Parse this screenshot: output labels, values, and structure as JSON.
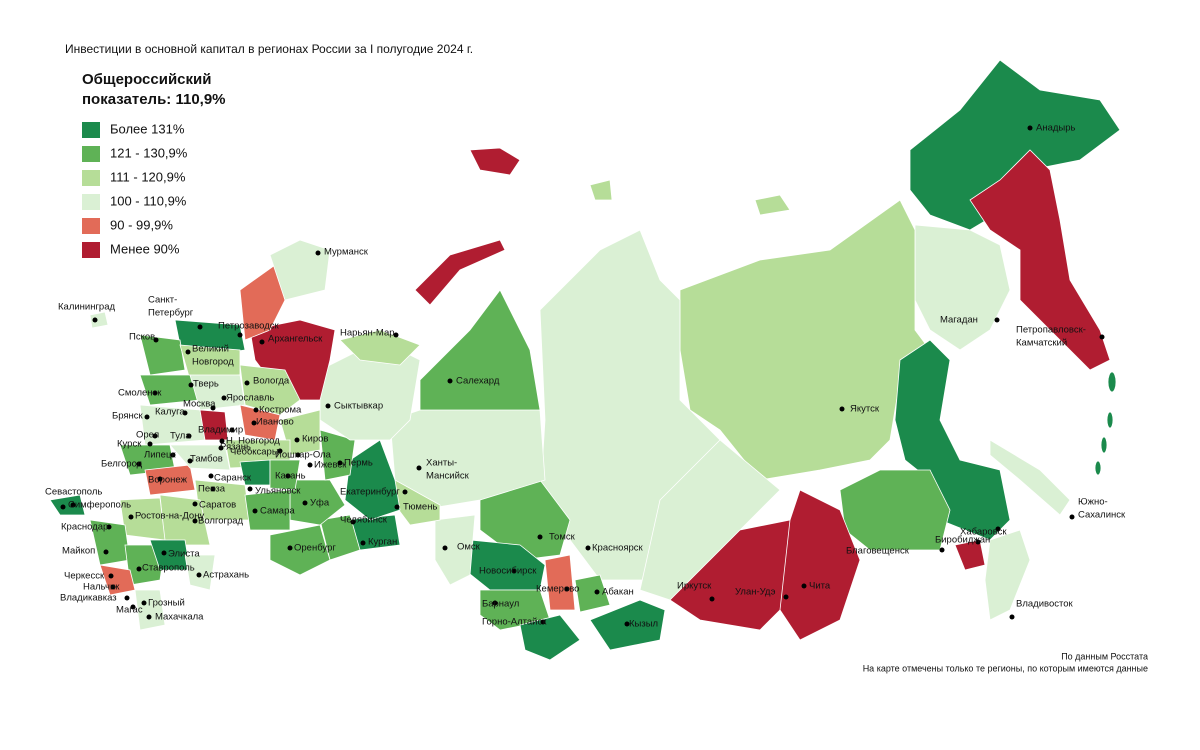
{
  "title": "Инвестиции в основной капитал в регионах России за I полугодие 2024 г.",
  "summary": [
    "Общероссийский",
    "показатель: 110,9%"
  ],
  "legend": [
    {
      "label": "Более 131%",
      "color": "#1b8a4c"
    },
    {
      "label": "121 - 130,9%",
      "color": "#5fb256"
    },
    {
      "label": "111 - 120,9%",
      "color": "#b6dd98"
    },
    {
      "label": "100 - 110,9%",
      "color": "#daf0d4"
    },
    {
      "label": "90 - 99,9%",
      "color": "#e26b58"
    },
    {
      "label": "Менее 90%",
      "color": "#b01d31"
    }
  ],
  "cities": [
    "Анадырь",
    "Мурманск",
    "Калининград",
    [
      "Санкт-",
      "Петербург"
    ],
    "Петрозаводск",
    "Нарьян-Мар",
    "Архангельск",
    "Псков",
    [
      "Великий",
      "Новгород"
    ],
    "Вологда",
    "Смоленск",
    "Тверь",
    "Москва",
    "Ярославль",
    "Кострома",
    "Иваново",
    "Брянск",
    "Калуга",
    "Тула",
    "Владимир",
    "Курск",
    "Орел",
    "Рязань",
    "Н. Новгород",
    "Липецк",
    "Белгород",
    "Тамбов",
    "Чебоксары",
    "Йошкар-Ола",
    "Киров",
    "Воронеж",
    "Пенза",
    "Саранск",
    "Казань",
    "Ижевск",
    "Пермь",
    "Сыктывкар",
    "Салехард",
    [
      "Ханты-",
      "Мансийск"
    ],
    "Екатеринбург",
    "Ульяновск",
    "Саратов",
    "Самара",
    "Уфа",
    "Челябинск",
    "Тюмень",
    "Курган",
    "Оренбург",
    "Волгоград",
    "Ростов-на-Дону",
    "Севастополь",
    "Симферополь",
    "Краснодар",
    "Майкоп",
    "Элиста",
    "Ставрополь",
    "Астрахань",
    "Черкесск",
    "Нальчик",
    "Владикавказ",
    "Магас",
    "Грозный",
    "Махачкала",
    "Омск",
    "Томск",
    "Новосибирск",
    "Кемерово",
    "Барнаул",
    "Горно-Алтайск",
    "Абакан",
    "Кызыл",
    "Красноярск",
    "Иркутск",
    "Улан-Удэ",
    "Чита",
    "Якутск",
    "Магадан",
    [
      "Петропавловск-",
      "Камчатский"
    ],
    "Благовещенск",
    "Биробиджан",
    "Хабаровск",
    [
      "Южно-",
      "Сахалинск"
    ],
    "Владивосток"
  ],
  "footnotes": [
    "По данным Росстата",
    "На карте отмечены только те регионы, по которым имеются данные"
  ]
}
